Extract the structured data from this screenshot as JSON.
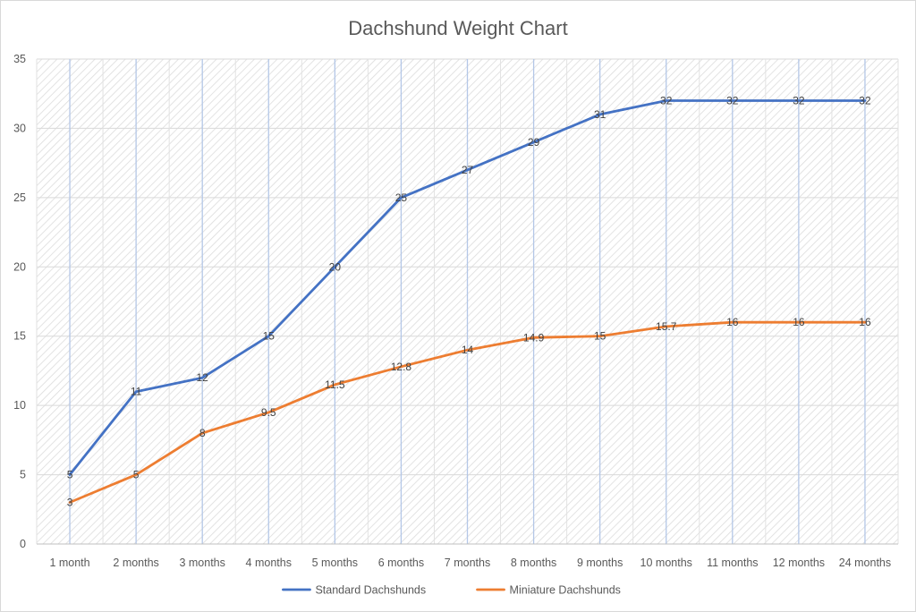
{
  "chart_data": {
    "type": "line",
    "title": "Dachshund Weight Chart",
    "xlabel": "",
    "ylabel": "",
    "categories": [
      "1 month",
      "2 months",
      "3 months",
      "4 months",
      "5 months",
      "6 months",
      "7 months",
      "8 months",
      "9 months",
      "10 months",
      "11 months",
      "12 months",
      "24 months"
    ],
    "ylim": [
      0,
      35
    ],
    "yticks": [
      0,
      5,
      10,
      15,
      20,
      25,
      30,
      35
    ],
    "grid": true,
    "legend_position": "bottom",
    "series": [
      {
        "name": "Standard Dachshunds",
        "color": "#4472c4",
        "values": [
          5,
          11,
          12,
          15,
          20,
          25,
          27,
          29,
          31,
          32,
          32,
          32,
          32
        ],
        "labels": [
          "5",
          "11",
          "12",
          "15",
          "20",
          "25",
          "27",
          "29",
          "31",
          "32",
          "32",
          "32",
          "32"
        ]
      },
      {
        "name": "Miniature Dachshunds",
        "color": "#ed7d31",
        "values": [
          3,
          5,
          8,
          9.5,
          11.5,
          12.8,
          14,
          14.9,
          15,
          15.7,
          16,
          16,
          16
        ],
        "labels": [
          "3",
          "5",
          "8",
          "9.5",
          "11.5",
          "12.8",
          "14",
          "14.9",
          "15",
          "15.7",
          "16",
          "16",
          "16"
        ]
      }
    ]
  }
}
